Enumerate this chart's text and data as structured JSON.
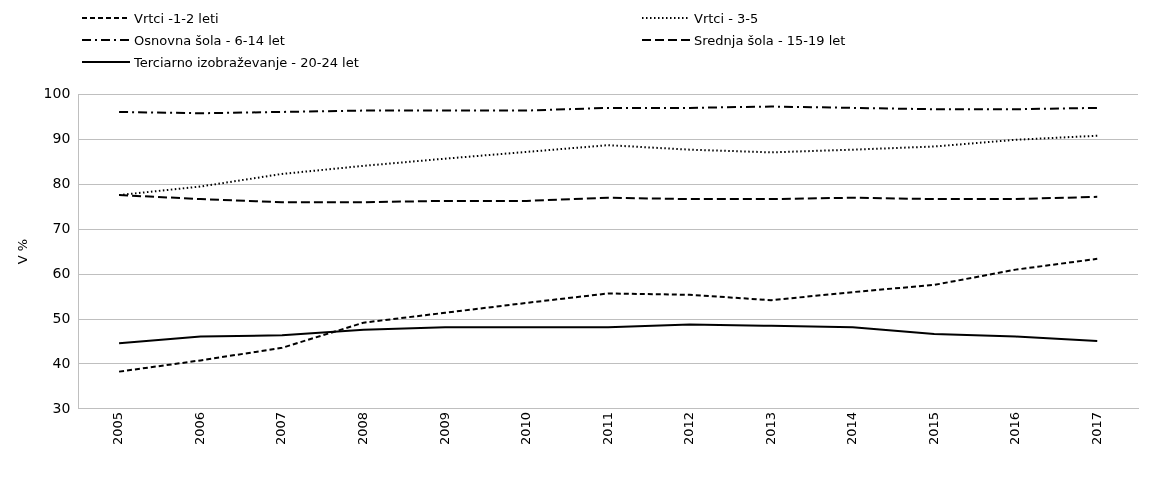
{
  "chart_data": {
    "type": "line",
    "ylabel": "V %",
    "categories": [
      "2005",
      "2006",
      "2007",
      "2008",
      "2009",
      "2010",
      "2011",
      "2012",
      "2013",
      "2014",
      "2015",
      "2016",
      "2017"
    ],
    "ylim": [
      30,
      100
    ],
    "yticks": [
      30,
      40,
      50,
      60,
      70,
      80,
      90,
      100
    ],
    "grid": "y",
    "legend": "top left",
    "marker": "none",
    "series": [
      {
        "name": "Vrtci -1-2 leti",
        "color": "#000000",
        "line_style": "dashed",
        "values": [
          38.3,
          40.8,
          43.6,
          49.2,
          51.4,
          53.6,
          55.7,
          55.4,
          54.2,
          56.0,
          57.6,
          61.0,
          63.4
        ]
      },
      {
        "name": "Vrtci - 3-5",
        "color": "#000000",
        "line_style": "dotted",
        "values": [
          77.6,
          79.5,
          82.3,
          84.1,
          85.7,
          87.2,
          88.7,
          87.7,
          87.1,
          87.7,
          88.4,
          89.9,
          90.8
        ]
      },
      {
        "name": "Osnovna šola - 6-14 let",
        "color": "#000000",
        "line_style": "dashdot",
        "values": [
          96.1,
          95.8,
          96.1,
          96.4,
          96.4,
          96.4,
          97.0,
          97.0,
          97.3,
          97.0,
          96.7,
          96.7,
          97.0
        ]
      },
      {
        "name": "Srednja šola - 15-19 let",
        "color": "#000000",
        "line_style": "longdash",
        "values": [
          77.6,
          76.7,
          76.0,
          76.0,
          76.3,
          76.3,
          77.0,
          76.7,
          76.7,
          77.0,
          76.7,
          76.7,
          77.2
        ]
      },
      {
        "name": "Terciarno izobraževanje - 20-24 let",
        "color": "#000000",
        "line_style": "solid",
        "values": [
          44.6,
          46.1,
          46.4,
          47.6,
          48.2,
          48.2,
          48.2,
          48.8,
          48.5,
          48.2,
          46.7,
          46.1,
          45.1
        ]
      }
    ]
  }
}
